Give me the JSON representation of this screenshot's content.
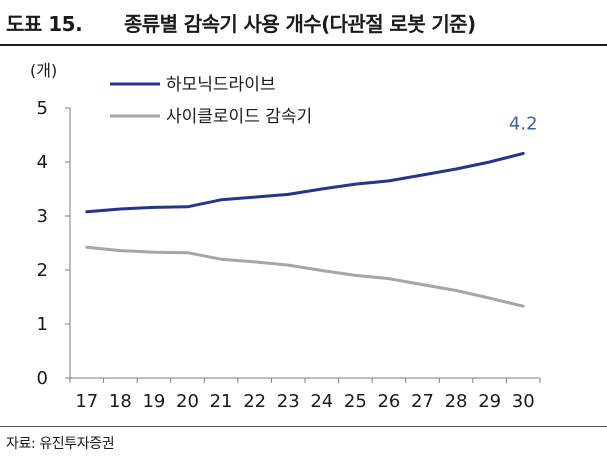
{
  "header": {
    "figure_number": "도표 15.",
    "title": "종류별 감속기 사용 개수(다관절 로봇 기준)"
  },
  "footer": {
    "source": "자료: 유진투자증권"
  },
  "chart_data": {
    "type": "line",
    "ylabel": "(개)",
    "xlabel": "",
    "ylim": [
      0,
      5
    ],
    "yticks": [
      "0",
      "1",
      "2",
      "3",
      "4",
      "5"
    ],
    "categories": [
      "17",
      "18",
      "19",
      "20",
      "21",
      "22",
      "23",
      "24",
      "25",
      "26",
      "27",
      "28",
      "29",
      "30"
    ],
    "grid": false,
    "legend_position": "top-left",
    "series": [
      {
        "name": "하모닉드라이브",
        "color": "#23368c",
        "values": [
          3.08,
          3.13,
          3.16,
          3.17,
          3.3,
          3.35,
          3.4,
          3.5,
          3.59,
          3.65,
          3.76,
          3.87,
          4.0,
          4.16
        ]
      },
      {
        "name": "사이클로이드 감속기",
        "color": "#a6a6a6",
        "values": [
          2.42,
          2.36,
          2.33,
          2.32,
          2.2,
          2.15,
          2.09,
          1.99,
          1.9,
          1.84,
          1.73,
          1.62,
          1.48,
          1.33
        ]
      }
    ],
    "annotations": [
      {
        "series": 0,
        "index": 13,
        "text": "4.2",
        "color": "#3a62a8"
      }
    ]
  }
}
